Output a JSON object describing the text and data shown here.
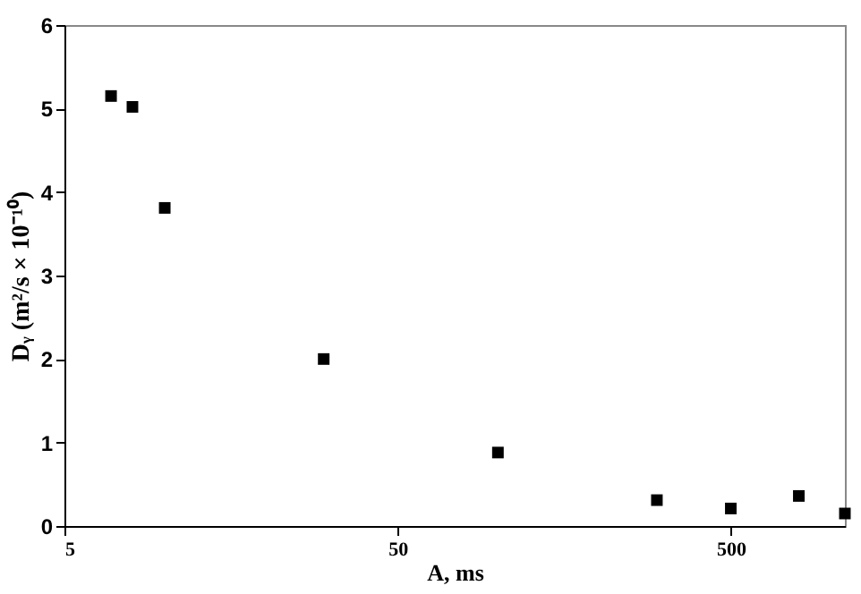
{
  "chart_data": {
    "type": "scatter",
    "xlabel": "A, ms",
    "ylabel": "Dᵧ (m²/s × 10⁻¹⁰)",
    "log": "x",
    "xlim": [
      5,
      1100
    ],
    "xticks": [
      5,
      50,
      500
    ],
    "ylim": [
      0,
      6
    ],
    "yticks": [
      0,
      1,
      2,
      3,
      4,
      5,
      6
    ],
    "grid": false,
    "legend": false,
    "marker": "square",
    "series": [
      {
        "color": "#000000",
        "x": [
          6.9,
          8,
          10,
          30,
          100,
          300,
          500,
          800,
          1100
        ],
        "values": [
          5.15,
          5.02,
          3.81,
          2.0,
          0.88,
          0.31,
          0.21,
          0.36,
          0.15
        ]
      }
    ]
  }
}
